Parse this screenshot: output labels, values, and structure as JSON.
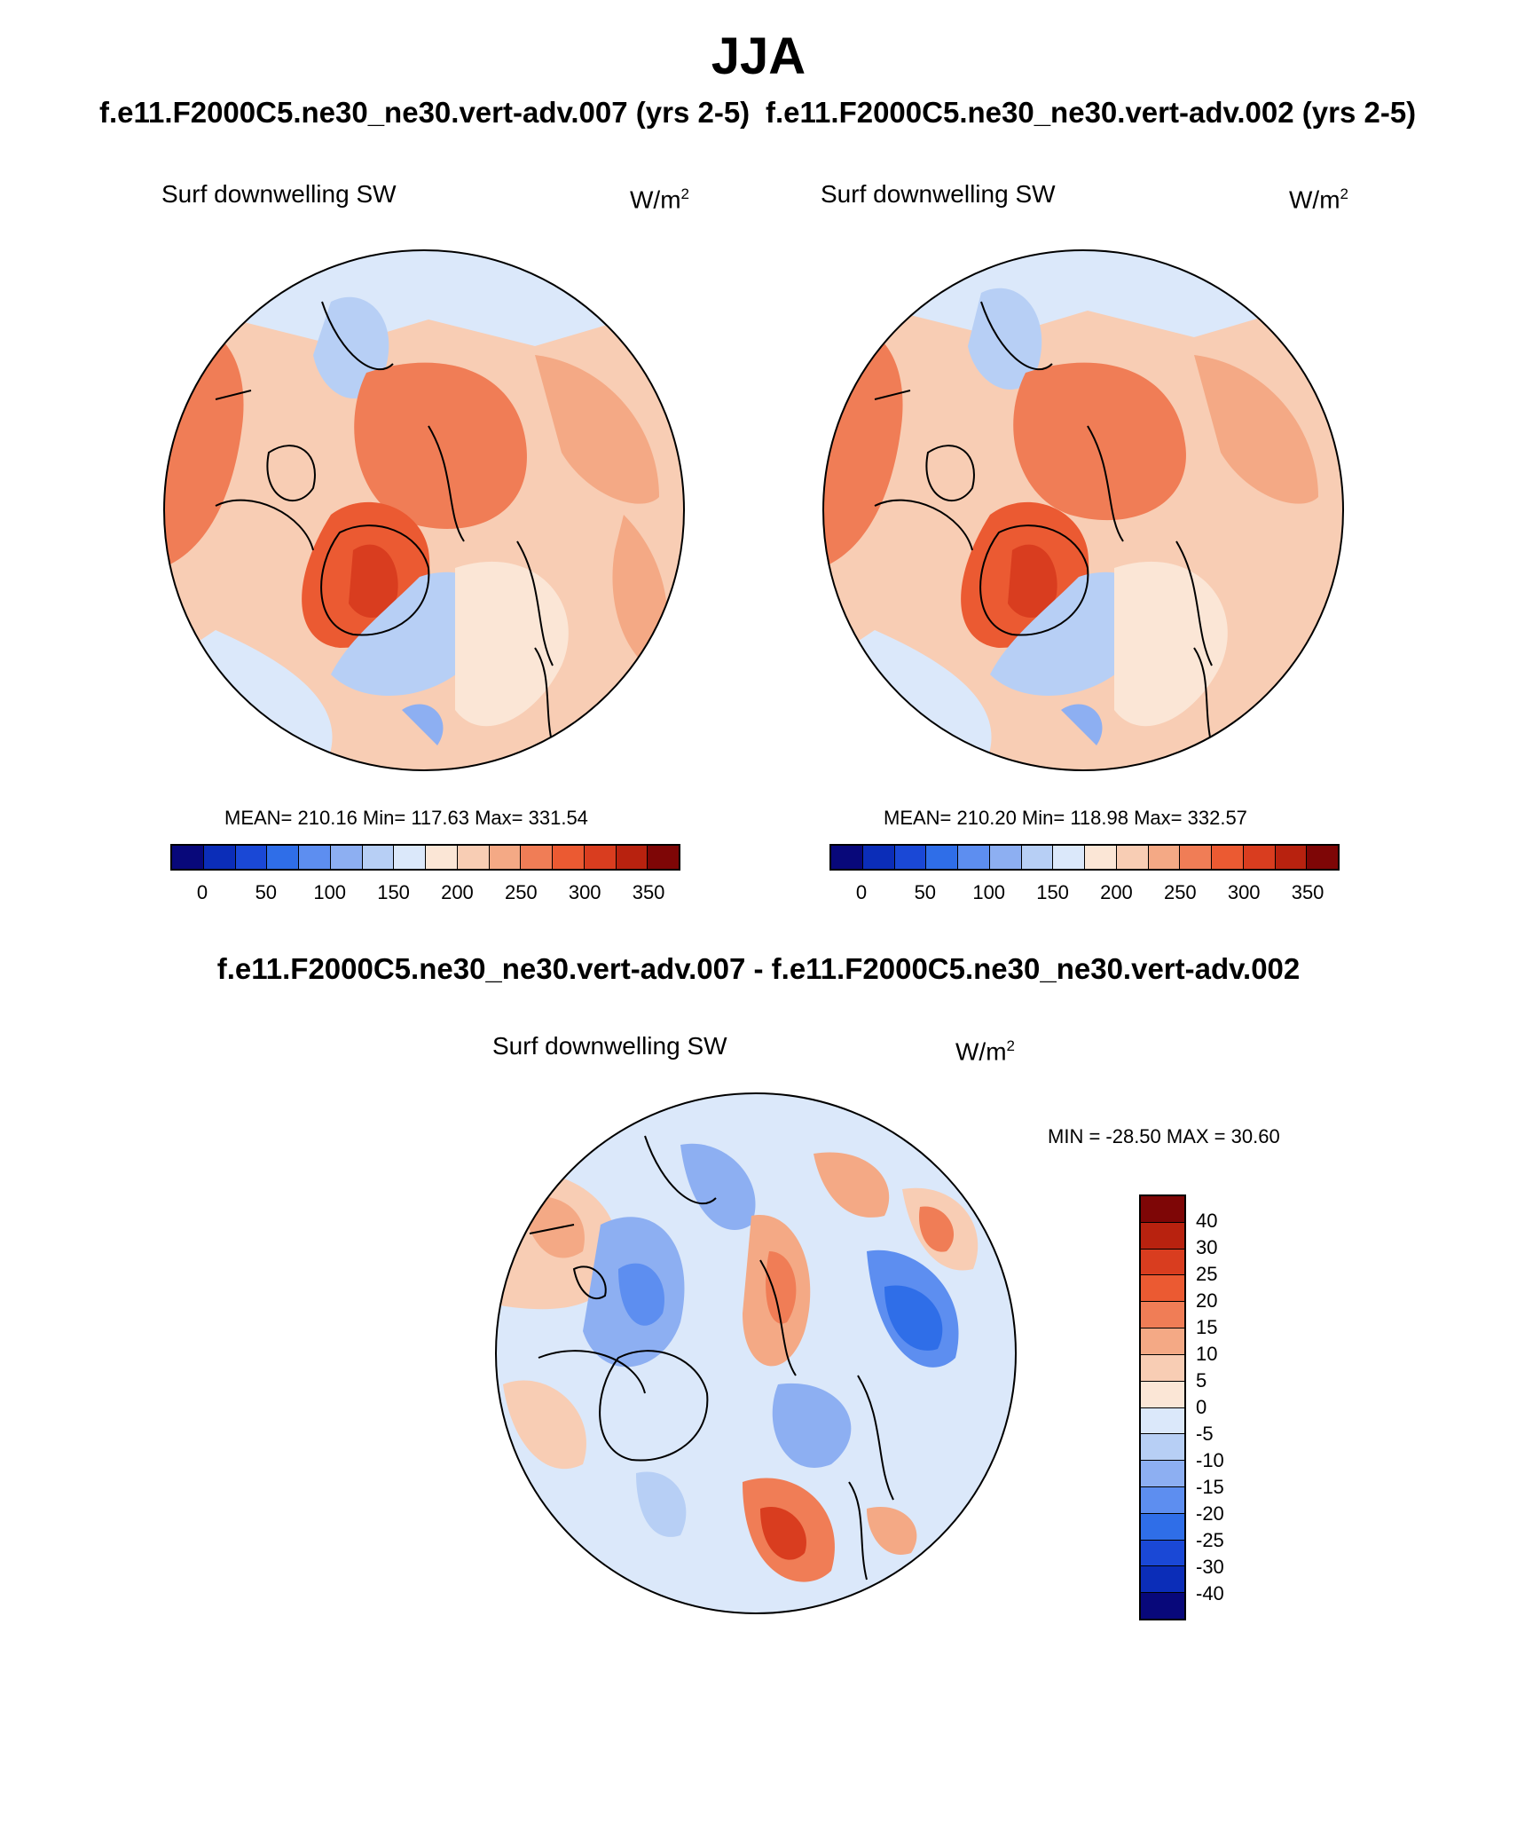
{
  "season": "JJA",
  "case_left": "f.e11.F2000C5.ne30_ne30.vert-adv.007 (yrs 2-5)",
  "case_right": "f.e11.F2000C5.ne30_ne30.vert-adv.002 (yrs 2-5)",
  "diff_title": "f.e11.F2000C5.ne30_ne30.vert-adv.007 - f.e11.F2000C5.ne30_ne30.vert-adv.002",
  "panels": [
    {
      "variable": "Surf downwelling SW",
      "units": "W/m",
      "units_sup": "2",
      "stats": "MEAN= 210.16  Min= 117.63  Max= 331.54"
    },
    {
      "variable": "Surf downwelling SW",
      "units": "W/m",
      "units_sup": "2",
      "stats": "MEAN= 210.20  Min= 118.98  Max= 332.57"
    },
    {
      "variable": "Surf downwelling SW",
      "units": "W/m",
      "units_sup": "2",
      "stats": "MIN = -28.50 MAX =  30.60"
    }
  ],
  "colorbar_main": {
    "colors": [
      "#08087a",
      "#0b2db8",
      "#1a48d6",
      "#2f6ee8",
      "#5d8ef0",
      "#8daff2",
      "#b7cff5",
      "#dbe8fa",
      "#fbe6d6",
      "#f8cdb4",
      "#f4a985",
      "#f07d56",
      "#eb5a32",
      "#d93d1f",
      "#b8220f",
      "#7e0606"
    ],
    "ticks": [
      "0",
      "50",
      "100",
      "150",
      "200",
      "250",
      "300",
      "350"
    ]
  },
  "colorbar_diff": {
    "colors": [
      "#7e0606",
      "#b8220f",
      "#d93d1f",
      "#eb5a32",
      "#f07d56",
      "#f4a985",
      "#f8cdb4",
      "#fbe6d6",
      "#dbe8fa",
      "#b7cff5",
      "#8daff2",
      "#5d8ef0",
      "#2f6ee8",
      "#1a48d6",
      "#0b2db8",
      "#08087a"
    ],
    "ticks": [
      "40",
      "30",
      "25",
      "20",
      "15",
      "10",
      "5",
      "0",
      "-5",
      "-10",
      "-15",
      "-20",
      "-25",
      "-30",
      "-40"
    ]
  },
  "chart_data": {
    "type": "heatmap",
    "projection": "north polar stereographic",
    "title": "JJA",
    "maps": [
      {
        "name": "f.e11.F2000C5.ne30_ne30.vert-adv.007 (yrs 2-5)",
        "variable": "Surf downwelling SW",
        "units": "W/m2",
        "mean": 210.16,
        "min": 117.63,
        "max": 331.54,
        "levels": [
          0,
          25,
          50,
          75,
          100,
          125,
          150,
          175,
          200,
          225,
          250,
          275,
          300,
          325,
          350
        ]
      },
      {
        "name": "f.e11.F2000C5.ne30_ne30.vert-adv.002 (yrs 2-5)",
        "variable": "Surf downwelling SW",
        "units": "W/m2",
        "mean": 210.2,
        "min": 118.98,
        "max": 332.57,
        "levels": [
          0,
          25,
          50,
          75,
          100,
          125,
          150,
          175,
          200,
          225,
          250,
          275,
          300,
          325,
          350
        ]
      },
      {
        "name": "vert-adv.007 - vert-adv.002",
        "variable": "Surf downwelling SW",
        "units": "W/m2",
        "min": -28.5,
        "max": 30.6,
        "levels": [
          -40,
          -30,
          -25,
          -20,
          -15,
          -10,
          -5,
          0,
          5,
          10,
          15,
          20,
          25,
          30,
          40
        ]
      }
    ]
  }
}
